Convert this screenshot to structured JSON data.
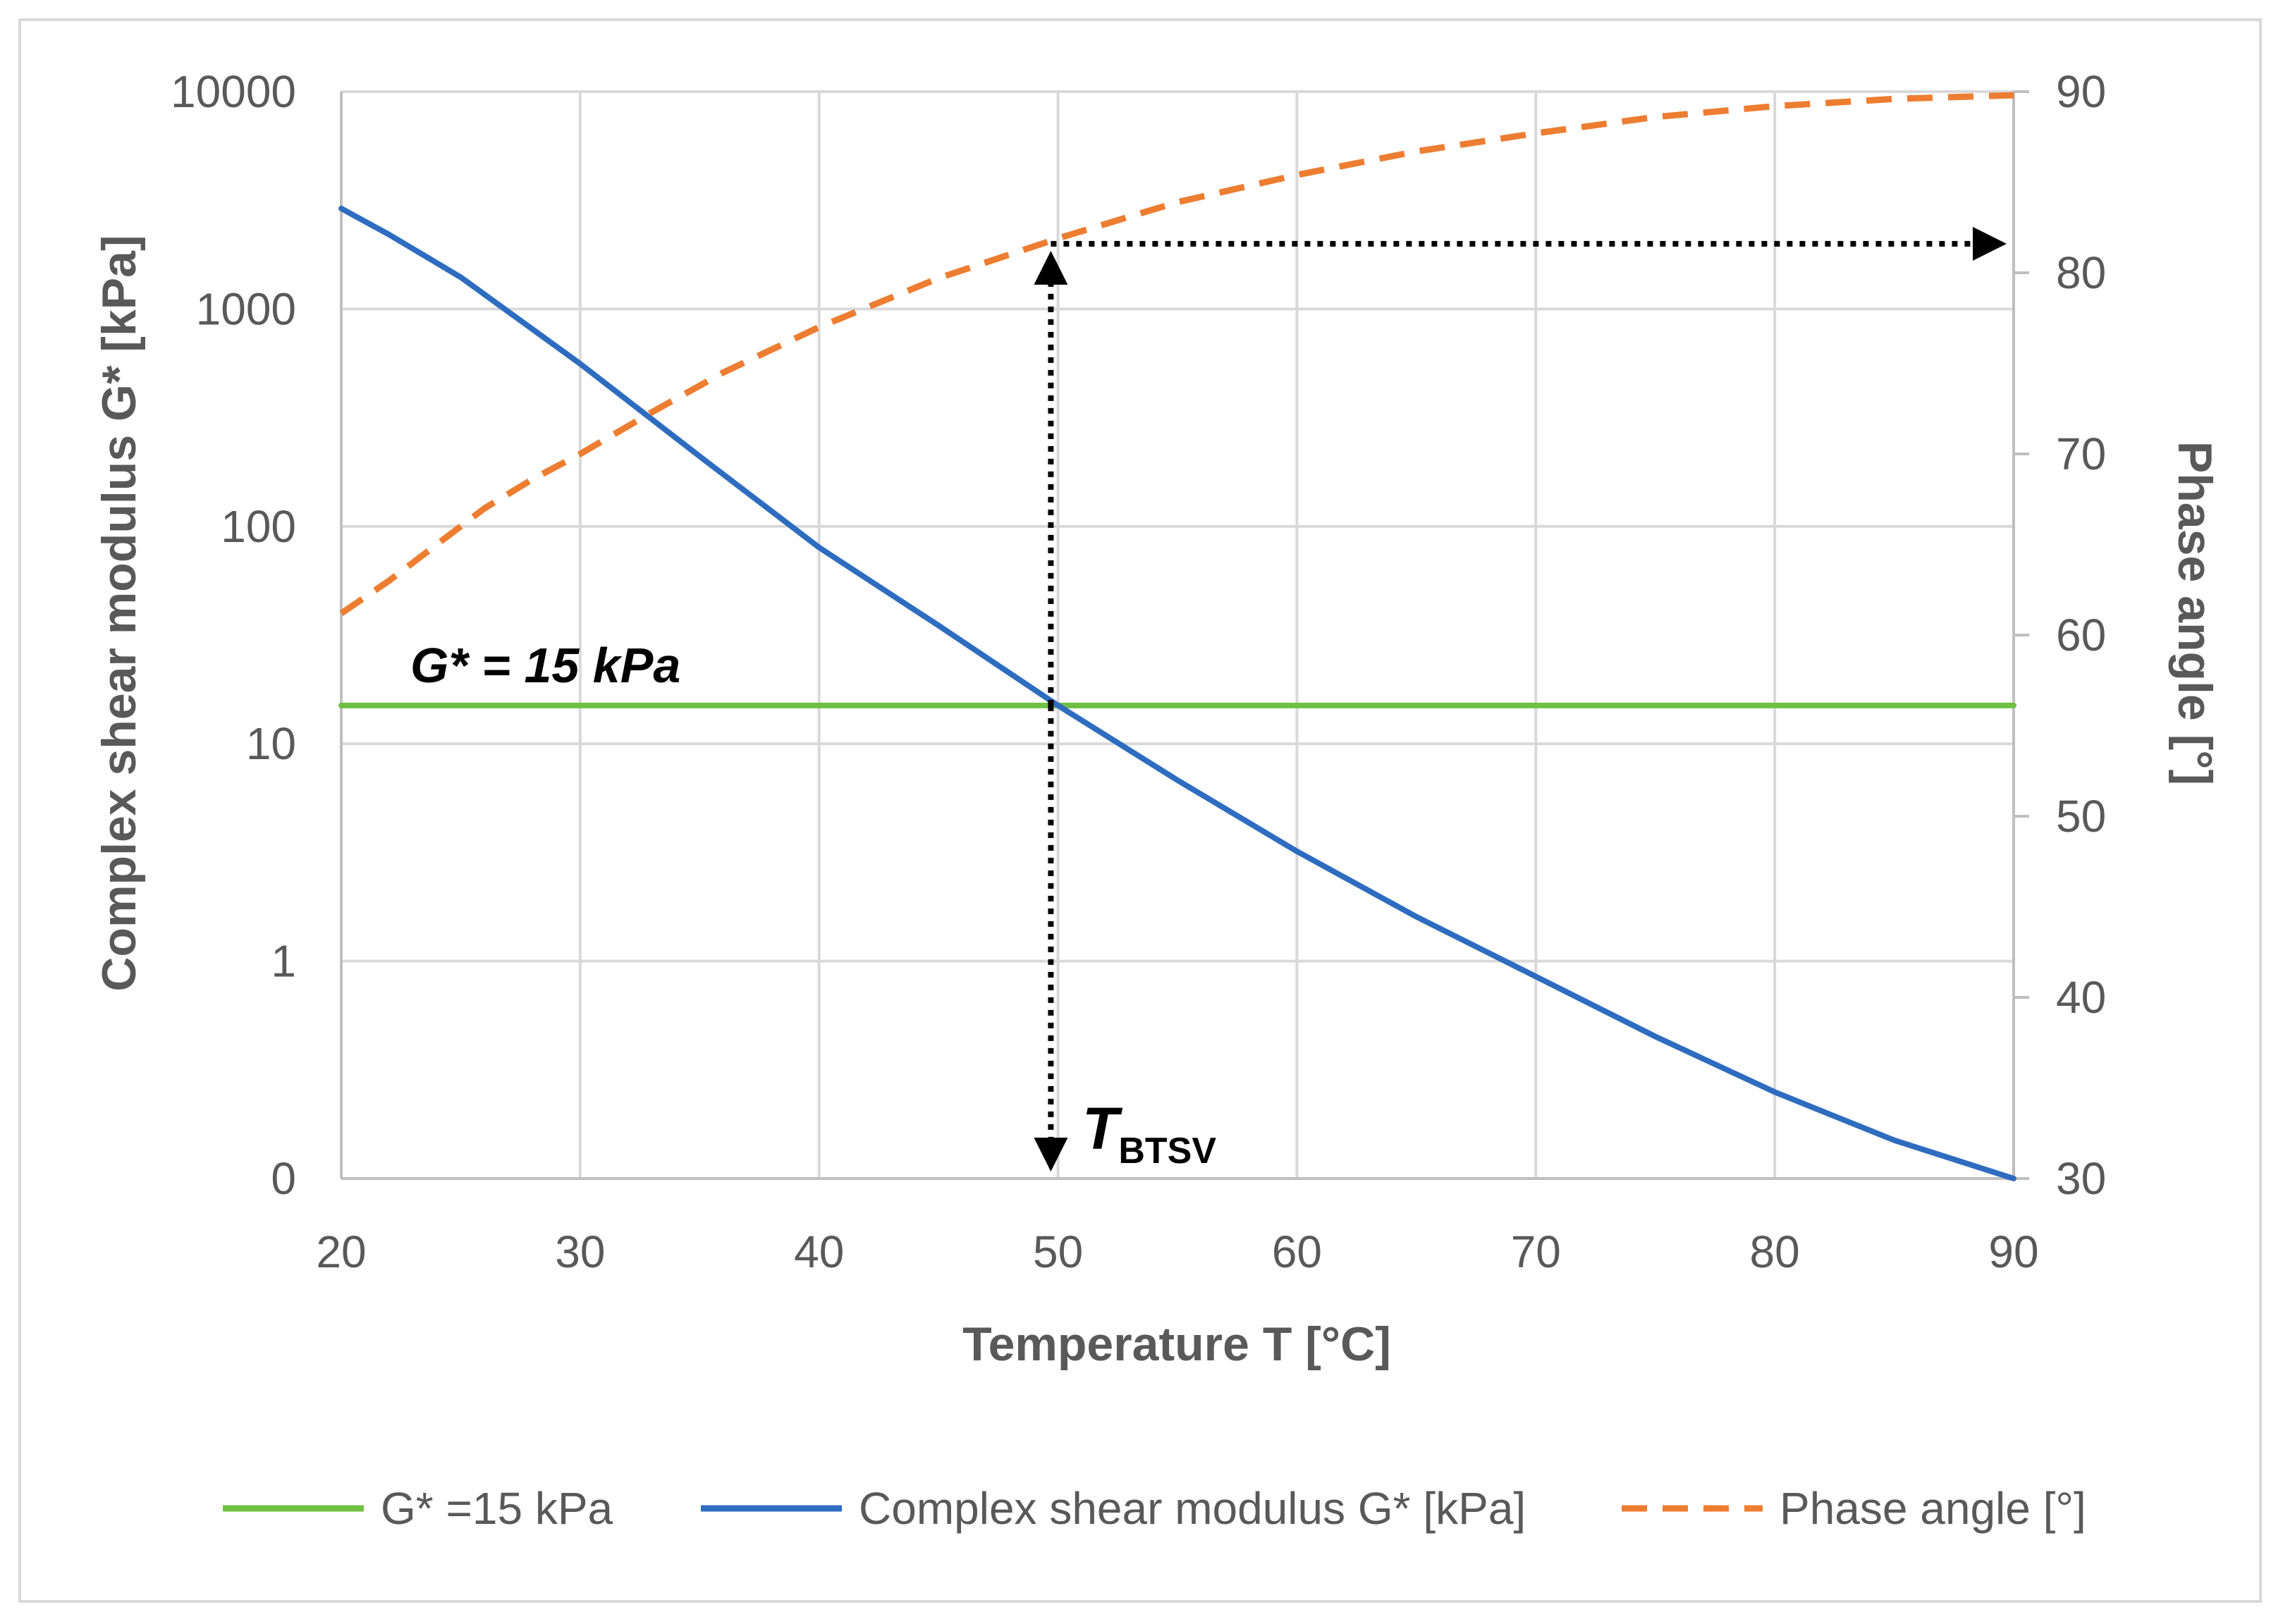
{
  "chart_data": {
    "type": "line",
    "xlabel": "Temperature T [°C]",
    "ylabel": "Complex shear modulus G* [kPa]",
    "y2label": "Phase angle [°]",
    "xlim": [
      20,
      90
    ],
    "x_ticks": [
      "20",
      "30",
      "40",
      "50",
      "60",
      "70",
      "80",
      "90"
    ],
    "y_scale": "log",
    "y_ticks": [
      "0",
      "1",
      "10",
      "100",
      "1000",
      "10000"
    ],
    "y2lim": [
      30,
      90
    ],
    "y2_ticks": [
      "30",
      "40",
      "50",
      "60",
      "70",
      "80",
      "90"
    ],
    "grid": true,
    "legend_position": "bottom",
    "series": [
      {
        "name": "G* =15 kPa",
        "axis": "left",
        "color": "#70c043",
        "style": "solid",
        "x": [
          20,
          90
        ],
        "y": [
          15,
          15
        ]
      },
      {
        "name": "Complex shear modulus G* [kPa]",
        "axis": "left",
        "color": "#2e6cc0",
        "style": "solid",
        "x": [
          20,
          22,
          25,
          30,
          35,
          40,
          45,
          50,
          55,
          60,
          65,
          70,
          75,
          80,
          85,
          90
        ],
        "y": [
          2900,
          2200,
          1400,
          560,
          210,
          80,
          35,
          15,
          6.8,
          3.2,
          1.6,
          0.85,
          0.45,
          0.25,
          0.15,
          0.1
        ]
      },
      {
        "name": "Phase angle [°]",
        "axis": "right",
        "color": "#ed7d31",
        "style": "dashed",
        "x": [
          20,
          22,
          24,
          26,
          28,
          30,
          33,
          36,
          40,
          45,
          50,
          55,
          60,
          65,
          70,
          75,
          80,
          85,
          90
        ],
        "y": [
          61.2,
          63.0,
          65.0,
          67.0,
          68.6,
          70.0,
          72.3,
          74.5,
          77.0,
          79.7,
          81.9,
          83.9,
          85.4,
          86.7,
          87.7,
          88.6,
          89.2,
          89.6,
          89.8
        ]
      }
    ],
    "annotations": [
      {
        "text": "G* = 15 kPa"
      },
      {
        "text": "T",
        "subscript": "BTSV"
      }
    ],
    "markers": {
      "t_btsv": 49.7,
      "phase_at_t_btsv": 81.6
    }
  }
}
